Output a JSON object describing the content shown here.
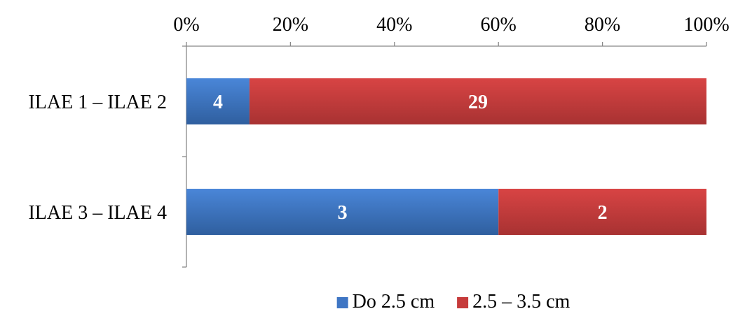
{
  "chart_data": {
    "type": "bar",
    "orientation": "horizontal",
    "stacked": "percent",
    "categories": [
      "ILAE 1 – ILAE 2",
      "ILAE 3 – ILAE 4"
    ],
    "series": [
      {
        "name": "Do 2.5 cm",
        "values": [
          4,
          3
        ],
        "color": "#3f76c4"
      },
      {
        "name": "2.5 – 3.5 cm",
        "values": [
          29,
          2
        ],
        "color": "#c63b3b"
      }
    ],
    "x_ticks": [
      "0%",
      "20%",
      "40%",
      "60%",
      "80%",
      "100%"
    ],
    "xlim": [
      0,
      100
    ],
    "x_axis_position": "top",
    "grid": false,
    "legend_position": "bottom"
  }
}
